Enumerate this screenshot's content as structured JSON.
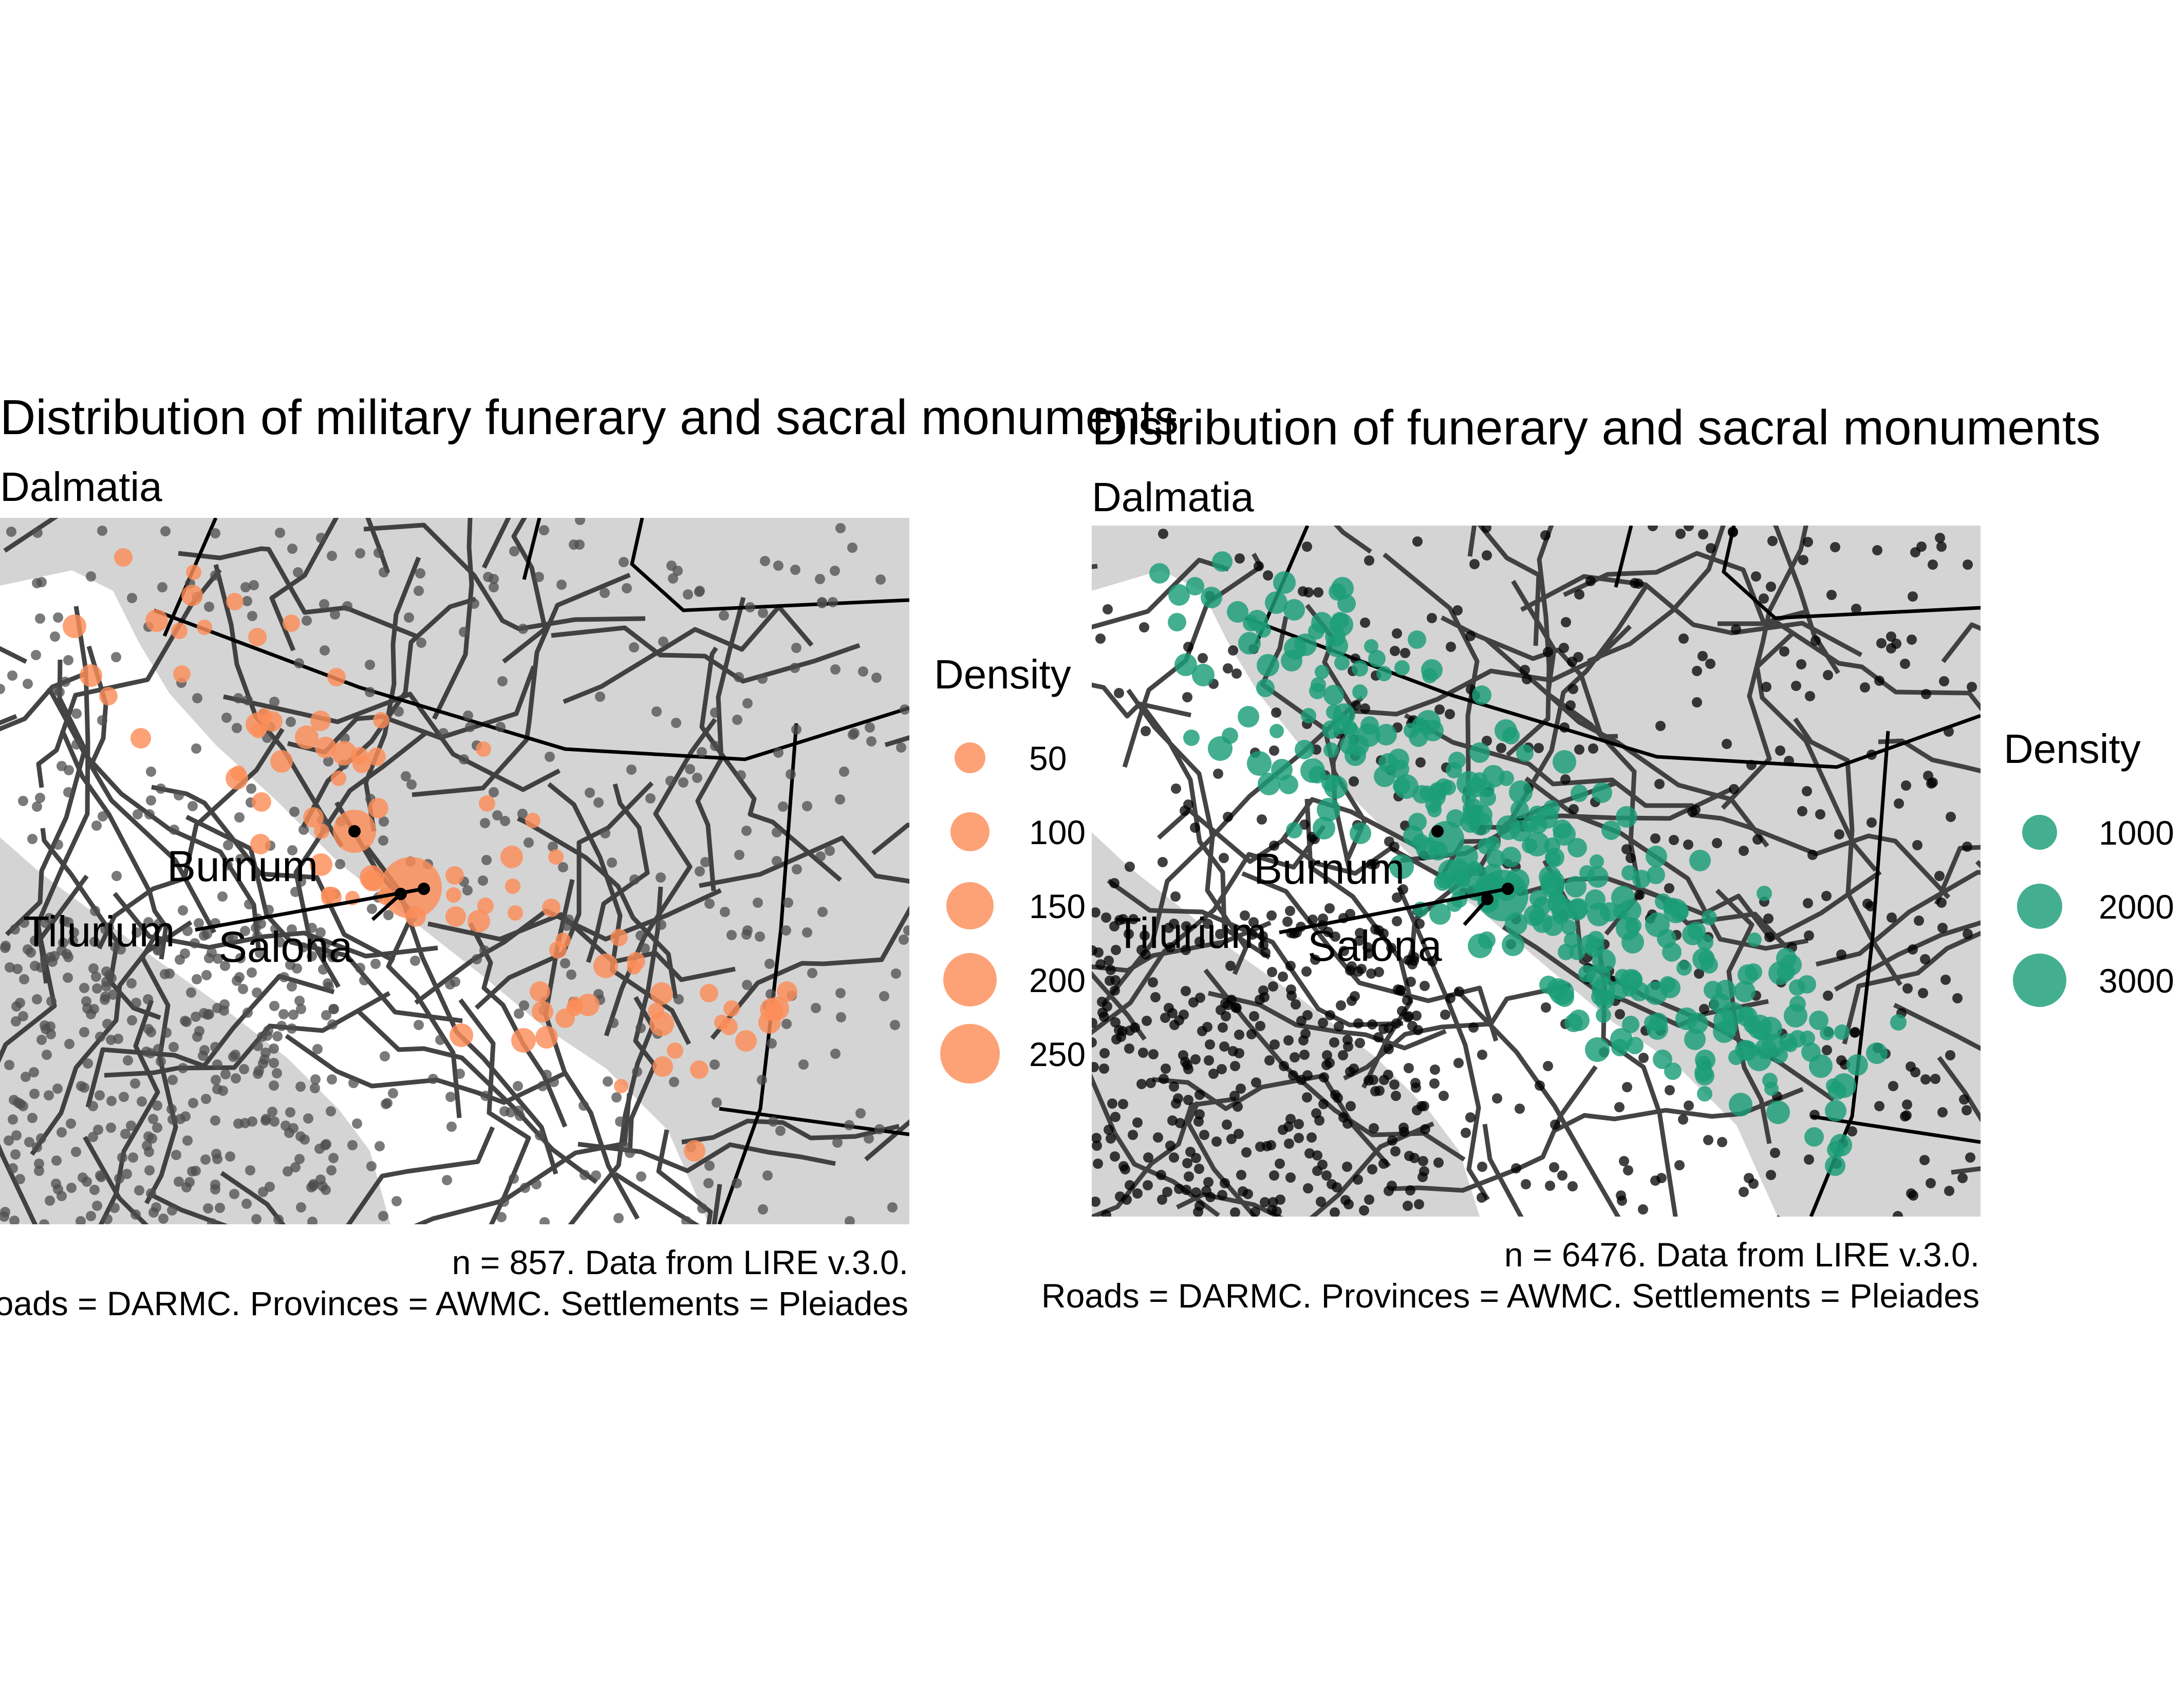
{
  "left": {
    "title": "Distribution of military funerary and sacral monuments",
    "subtitle": "Dalmatia",
    "caption_line1": "n = 857. Data from LIRE v.3.0.",
    "caption_line2": "Roads = DARMC. Provinces = AWMC. Settlements = Pleiades",
    "legend_title": "Density",
    "legend_items": [
      "50",
      "100",
      "150",
      "200",
      "250"
    ],
    "point_color": "#FC8D59",
    "labels": {
      "burnum": "Burnum",
      "salona": "Salona",
      "tilurium": "Tilurium"
    }
  },
  "right": {
    "title": "Distribution of funerary and sacral monuments",
    "subtitle": "Dalmatia",
    "caption_line1": "n = 6476. Data from LIRE v.3.0.",
    "caption_line2": "Roads = DARMC. Provinces = AWMC. Settlements = Pleiades",
    "legend_title": "Density",
    "legend_items": [
      "1000",
      "2000",
      "3000"
    ],
    "point_color": "#1B9E77",
    "labels": {
      "burnum": "Burnum",
      "salona": "Salona",
      "tilurium": "Tilurium"
    }
  },
  "colors": {
    "land": "#D4D4D4",
    "sea": "#FFFFFF",
    "roads": "#3A3A3A",
    "provinces": "#000000",
    "settlements_left": "#4D4D4D",
    "settlements_right": "#000000"
  }
}
